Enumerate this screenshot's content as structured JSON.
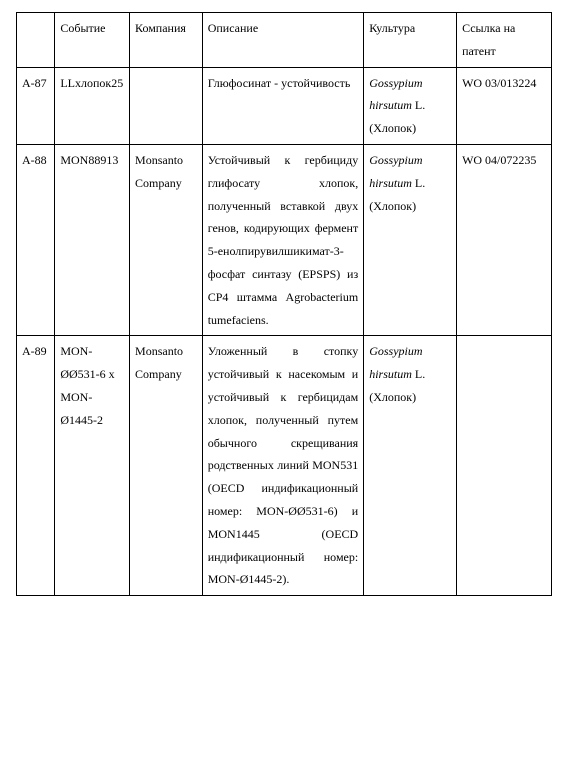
{
  "table": {
    "headers": {
      "id": "",
      "event": "Событие",
      "company": "Компания",
      "description": "Описание",
      "culture": "Культура",
      "patent": "Ссылка на патент"
    },
    "rows": [
      {
        "id": "A-87",
        "event": "LLхлопок25",
        "company": "",
        "description": "Глюфосинат - устойчивость",
        "culture_italic": "Gossypium hirsutum",
        "culture_rest": "L. (Хлопок)",
        "patent": "WO 03/013224"
      },
      {
        "id": "A-88",
        "event": "MON88913",
        "company": "Monsanto Company",
        "description": "Устойчивый к гербициду глифосату хлопок, полученный вставкой двух генов, кодирующих фермент 5-енолпирувилшикимат-3-фосфат синтазу (EPSPS) из CP4 штамма Agrobacterium tumefaciens.",
        "culture_italic": "Gossypium hirsutum",
        "culture_rest": "L. (Хлопок)",
        "patent": "WO 04/072235"
      },
      {
        "id": "A-89",
        "event": "MON-ØØ531-6 x MON-Ø1445-2",
        "company": "Monsanto Company",
        "description": "Уложенный в стопку устойчивый к насекомым и устойчивый к гербицидам хлопок, полученный путем обычного скрещивания родственных линий MON531 (OECD индификационный номер: MON-ØØ531-6) и MON1445 (OECD индификационный номер: MON-Ø1445-2).",
        "culture_italic": "Gossypium hirsutum",
        "culture_rest": "L. (Хлопок)",
        "patent": ""
      }
    ]
  }
}
